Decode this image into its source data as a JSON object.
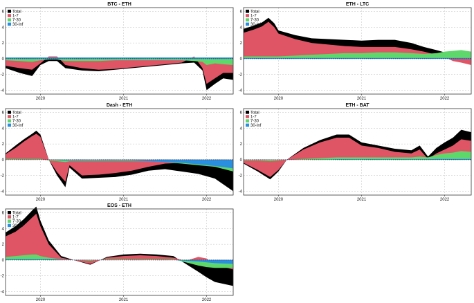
{
  "colors": {
    "total": "#000000",
    "short": "#e05565",
    "mid": "#5ed86a",
    "long": "#2b8fe0"
  },
  "chart_data": [
    {
      "type": "area",
      "title": "BTC - ETH",
      "legend": [
        "Total",
        "1-7",
        "7-30",
        "30-Inf"
      ],
      "legend_position": "top-left",
      "x_ticks": [
        "2020",
        "2021",
        "2022"
      ],
      "ylim": [
        -4.5,
        6.5
      ],
      "y_ticks": [
        -4,
        -2,
        0,
        2,
        4,
        6
      ],
      "grid": true,
      "x": [
        2019.58,
        2019.75,
        2019.9,
        2020.0,
        2020.1,
        2020.2,
        2020.3,
        2020.5,
        2020.7,
        2020.9,
        2021.1,
        2021.3,
        2021.5,
        2021.7,
        2021.85,
        2021.95,
        2022.0,
        2022.1,
        2022.2,
        2022.32
      ],
      "series": [
        {
          "name": "Total",
          "values": [
            -1.2,
            -1.8,
            -2.2,
            -0.8,
            -0.3,
            -0.3,
            -1.2,
            -1.5,
            -1.6,
            -1.4,
            -1.2,
            -1.0,
            -0.8,
            -0.6,
            -0.5,
            -1.5,
            -4.0,
            -3.2,
            -2.5,
            -2.7
          ]
        },
        {
          "name": "1-7",
          "values": [
            -0.9,
            -1.2,
            -1.4,
            -0.6,
            0.3,
            0.3,
            -0.8,
            -1.2,
            -1.4,
            -1.3,
            -1.1,
            -0.9,
            -0.7,
            -0.5,
            0.3,
            -1.2,
            -3.2,
            -2.5,
            -1.8,
            -1.8
          ]
        },
        {
          "name": "7-30",
          "values": [
            -0.2,
            -0.3,
            -0.4,
            -0.2,
            -0.1,
            -0.1,
            -0.3,
            -0.3,
            -0.3,
            -0.2,
            -0.2,
            -0.2,
            -0.2,
            -0.2,
            -0.3,
            -0.4,
            -0.8,
            -0.6,
            -0.7,
            -0.8
          ]
        },
        {
          "name": "30-Inf",
          "values": [
            0.15,
            0.15,
            0.15,
            0.15,
            0.15,
            0.15,
            0.15,
            0.15,
            0.15,
            0.15,
            0.15,
            0.15,
            0.15,
            0.15,
            0.15,
            0.15,
            0.15,
            0.15,
            0.15,
            0.15
          ]
        }
      ]
    },
    {
      "type": "area",
      "title": "ETH - LTC",
      "legend": [
        "Total",
        "1-7",
        "7-30",
        "30-Inf"
      ],
      "legend_position": "top-left",
      "x_ticks": [
        "2020",
        "2021",
        "2022"
      ],
      "ylim": [
        -4.5,
        6.5
      ],
      "y_ticks": [
        -4,
        -2,
        0,
        2,
        4,
        6
      ],
      "grid": true,
      "x": [
        2019.58,
        2019.7,
        2019.8,
        2019.88,
        2019.95,
        2020.0,
        2020.2,
        2020.4,
        2020.6,
        2020.8,
        2021.0,
        2021.2,
        2021.4,
        2021.6,
        2021.75,
        2021.9,
        2022.0,
        2022.1,
        2022.2,
        2022.32
      ],
      "series": [
        {
          "name": "Total",
          "values": [
            3.8,
            4.2,
            4.6,
            5.2,
            4.5,
            3.6,
            3.0,
            2.6,
            2.5,
            2.4,
            2.3,
            2.4,
            2.4,
            2.0,
            1.5,
            1.1,
            0.8,
            0.7,
            0.8,
            0.7
          ]
        },
        {
          "name": "1-7",
          "values": [
            3.3,
            3.7,
            4.1,
            4.7,
            4.0,
            3.2,
            2.5,
            2.0,
            1.8,
            1.6,
            1.5,
            1.5,
            1.5,
            1.2,
            0.9,
            0.5,
            0.2,
            -0.3,
            -0.5,
            -0.8
          ]
        },
        {
          "name": "7-30",
          "values": [
            0.3,
            0.3,
            0.3,
            0.3,
            0.3,
            0.3,
            0.4,
            0.5,
            0.6,
            0.7,
            0.7,
            0.8,
            0.8,
            0.7,
            0.6,
            0.7,
            0.9,
            1.0,
            1.1,
            0.9
          ]
        },
        {
          "name": "30-Inf",
          "values": [
            0.1,
            0.1,
            0.1,
            0.1,
            0.1,
            0.1,
            0.1,
            0.1,
            0.1,
            0.1,
            0.1,
            0.1,
            0.1,
            0.1,
            0.1,
            0.1,
            0.1,
            0.1,
            0.1,
            0.1
          ]
        }
      ]
    },
    {
      "type": "area",
      "title": "Dash - ETH",
      "legend": [
        "Total",
        "1-7",
        "7-30",
        "30-Inf"
      ],
      "legend_position": "top-left",
      "x_ticks": [
        "2020",
        "2021",
        "2022"
      ],
      "ylim": [
        -4.5,
        6.5
      ],
      "y_ticks": [
        -4,
        -2,
        0,
        2,
        4,
        6
      ],
      "grid": true,
      "x": [
        2019.58,
        2019.7,
        2019.8,
        2019.9,
        2019.95,
        2020.0,
        2020.1,
        2020.2,
        2020.3,
        2020.35,
        2020.5,
        2020.7,
        2020.9,
        2021.1,
        2021.3,
        2021.5,
        2021.7,
        2021.9,
        2022.1,
        2022.32
      ],
      "series": [
        {
          "name": "Total",
          "values": [
            0.8,
            1.8,
            2.6,
            3.3,
            3.7,
            3.2,
            0.0,
            -2.0,
            -3.5,
            -1.0,
            -2.4,
            -2.3,
            -2.2,
            -1.9,
            -1.4,
            -1.2,
            -1.5,
            -1.8,
            -2.4,
            -4.0
          ]
        },
        {
          "name": "1-7",
          "values": [
            0.7,
            1.5,
            2.3,
            3.0,
            3.3,
            2.9,
            0.0,
            -1.6,
            -2.8,
            -0.7,
            -2.0,
            -1.9,
            -1.7,
            -1.4,
            -0.9,
            -0.5,
            -0.4,
            -0.4,
            -0.6,
            -1.2
          ]
        },
        {
          "name": "7-30",
          "values": [
            0.1,
            0.1,
            0.1,
            0.1,
            0.1,
            0.1,
            -0.1,
            -0.2,
            -0.3,
            -0.2,
            -0.2,
            -0.2,
            -0.2,
            -0.2,
            -0.2,
            -0.3,
            -0.5,
            -0.7,
            -0.9,
            -1.5
          ]
        },
        {
          "name": "30-Inf",
          "values": [
            0.0,
            0.0,
            0.0,
            0.0,
            0.0,
            0.0,
            0.0,
            -0.05,
            -0.1,
            -0.1,
            -0.1,
            -0.1,
            -0.1,
            -0.1,
            -0.2,
            -0.3,
            -0.4,
            -0.6,
            -0.8,
            -1.1
          ]
        }
      ]
    },
    {
      "type": "area",
      "title": "ETH - BAT",
      "legend": [
        "Total",
        "1-7",
        "7-30",
        "30-Inf"
      ],
      "legend_position": "top-left",
      "x_ticks": [
        "2020",
        "2021",
        "2022"
      ],
      "ylim": [
        -4.5,
        6.5
      ],
      "y_ticks": [
        -4,
        -2,
        0,
        2,
        4,
        6
      ],
      "grid": true,
      "x": [
        2019.58,
        2019.75,
        2019.9,
        2020.0,
        2020.1,
        2020.3,
        2020.5,
        2020.7,
        2020.85,
        2021.0,
        2021.2,
        2021.4,
        2021.6,
        2021.7,
        2021.8,
        2021.9,
        2022.0,
        2022.1,
        2022.2,
        2022.32
      ],
      "series": [
        {
          "name": "Total",
          "values": [
            -0.5,
            -1.5,
            -2.5,
            -1.5,
            0.0,
            1.5,
            2.5,
            3.2,
            3.2,
            2.2,
            1.8,
            1.4,
            1.2,
            1.8,
            0.4,
            1.5,
            2.2,
            2.8,
            3.8,
            3.5
          ]
        },
        {
          "name": "1-7",
          "values": [
            -0.4,
            -1.3,
            -2.2,
            -1.3,
            0.0,
            1.3,
            2.2,
            2.8,
            2.8,
            1.8,
            1.5,
            1.0,
            0.8,
            1.3,
            0.1,
            0.8,
            1.3,
            1.8,
            2.6,
            2.4
          ]
        },
        {
          "name": "7-30",
          "values": [
            -0.1,
            -0.1,
            -0.2,
            -0.1,
            0.0,
            0.1,
            0.2,
            0.3,
            0.3,
            0.3,
            0.3,
            0.3,
            0.3,
            0.4,
            0.3,
            0.6,
            0.8,
            0.9,
            1.1,
            1.0
          ]
        },
        {
          "name": "30-Inf",
          "values": [
            0.0,
            0.0,
            0.0,
            0.0,
            0.0,
            0.0,
            0.0,
            0.05,
            0.05,
            0.05,
            0.05,
            0.05,
            0.05,
            0.05,
            0.05,
            0.1,
            0.1,
            0.1,
            0.1,
            0.1
          ]
        }
      ]
    },
    {
      "type": "area",
      "title": "EOS - ETH",
      "legend": [
        "Total",
        "1-7",
        "7-30",
        "30-Inf"
      ],
      "legend_position": "top-left",
      "x_ticks": [
        "2020",
        "2021",
        "2022"
      ],
      "ylim": [
        -4.5,
        6.5
      ],
      "y_ticks": [
        -4,
        -2,
        0,
        2,
        4,
        6
      ],
      "grid": true,
      "x": [
        2019.58,
        2019.7,
        2019.8,
        2019.9,
        2019.95,
        2020.0,
        2020.1,
        2020.25,
        2020.4,
        2020.6,
        2020.8,
        2021.0,
        2021.2,
        2021.4,
        2021.6,
        2021.75,
        2021.9,
        2022.0,
        2022.1,
        2022.32
      ],
      "series": [
        {
          "name": "Total",
          "values": [
            3.5,
            4.3,
            5.2,
            6.3,
            6.8,
            5.0,
            2.5,
            0.5,
            0.0,
            -0.6,
            0.4,
            0.7,
            0.8,
            0.7,
            0.5,
            -0.5,
            -1.5,
            -2.2,
            -2.8,
            -3.3
          ]
        },
        {
          "name": "1-7",
          "values": [
            3.0,
            3.6,
            4.4,
            5.4,
            5.9,
            4.3,
            2.0,
            0.3,
            0.0,
            -0.5,
            0.3,
            0.5,
            0.6,
            0.5,
            0.3,
            -0.1,
            0.4,
            0.2,
            -0.6,
            -1.2
          ]
        },
        {
          "name": "7-30",
          "values": [
            0.4,
            0.5,
            0.6,
            0.7,
            0.7,
            0.5,
            0.3,
            0.1,
            0.0,
            -0.1,
            0.1,
            0.1,
            0.1,
            0.1,
            0.1,
            -0.3,
            -0.7,
            -0.9,
            -1.0,
            -1.0
          ]
        },
        {
          "name": "30-Inf",
          "values": [
            0.1,
            0.1,
            0.1,
            0.1,
            0.1,
            0.1,
            0.1,
            0.05,
            0.0,
            0.0,
            0.0,
            0.0,
            0.0,
            0.0,
            0.0,
            -0.1,
            -0.2,
            -0.3,
            -0.4,
            -0.5
          ]
        }
      ]
    }
  ]
}
